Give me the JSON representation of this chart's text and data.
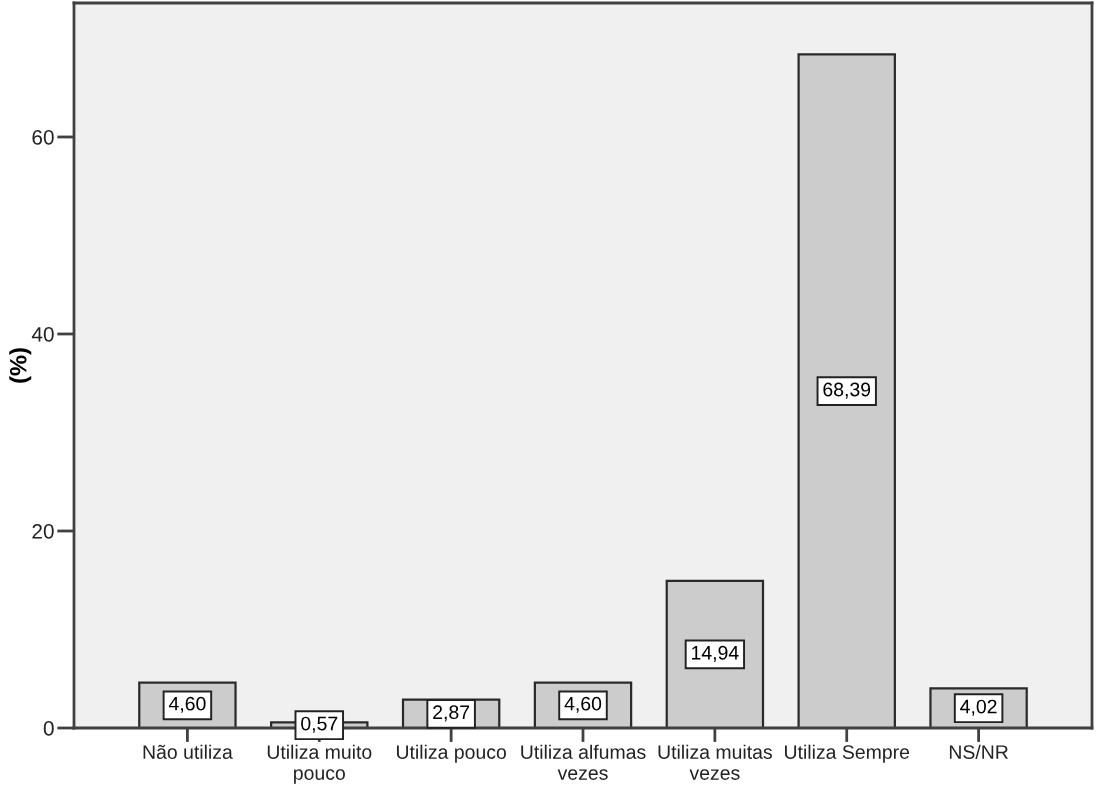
{
  "chart_data": {
    "type": "bar",
    "ylabel": "(%)",
    "categories": [
      "Não utiliza",
      "Utiliza muito pouco",
      "Utiliza pouco",
      "Utiliza alfumas vezes",
      "Utiliza muitas vezes",
      "Utiliza Sempre",
      "NS/NR"
    ],
    "values": [
      4.6,
      0.57,
      2.87,
      4.6,
      14.94,
      68.39,
      4.02
    ],
    "value_labels": [
      "4,60",
      "0,57",
      "2,87",
      "4,60",
      "14,94",
      "68,39",
      "4,02"
    ],
    "color": "#cccccc",
    "ylim": [
      0,
      73.6
    ],
    "yticks": [
      0,
      20,
      40,
      60
    ],
    "grid": false,
    "legend": false
  }
}
